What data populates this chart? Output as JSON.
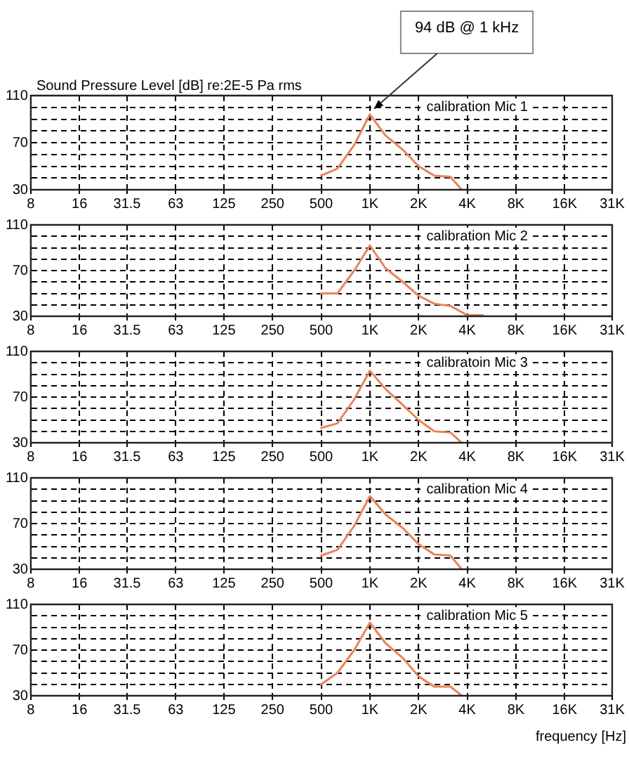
{
  "chart_data": [
    {
      "type": "line",
      "ylabel": "Sound Pressure Level [dB] re:2E-5 Pa rms",
      "log": "x",
      "grid": true,
      "marker": "none",
      "line_style": "solid",
      "x": [
        500,
        630,
        800,
        1000,
        1250,
        1600,
        2000,
        2500,
        3150,
        3700
      ],
      "series": [
        {
          "color": "#e8845a",
          "values": [
            42,
            48,
            68,
            94,
            76,
            64,
            50,
            42,
            41,
            30
          ]
        }
      ],
      "xlim": [
        8,
        31500
      ],
      "xticks": [
        8,
        16,
        31.5,
        63,
        125,
        250,
        500,
        {
          "value": 1000,
          "label": "1K"
        },
        {
          "value": 2000,
          "label": "2K"
        },
        {
          "value": 4000,
          "label": "4K"
        },
        {
          "value": 8000,
          "label": "8K"
        },
        {
          "value": 16000,
          "label": "16K"
        },
        {
          "value": 31500,
          "label": "31K"
        }
      ],
      "ylim": [
        30,
        110
      ],
      "yticks": [
        30,
        {
          "value": 40,
          "label": null
        },
        {
          "value": 50,
          "label": null
        },
        {
          "value": 60,
          "label": null
        },
        70,
        {
          "value": 80,
          "label": null
        },
        {
          "value": 90,
          "label": null
        },
        {
          "value": 100,
          "label": null
        },
        110
      ],
      "annotations": [
        "calibration Mic 1",
        {
          "text": "94 dB @ 1 kHz",
          "x": 1000,
          "y": 94
        }
      ]
    },
    {
      "type": "line",
      "log": "x",
      "grid": true,
      "marker": "none",
      "line_style": "solid",
      "x": [
        500,
        630,
        800,
        1000,
        1250,
        1600,
        2000,
        2500,
        3150,
        4000,
        5000
      ],
      "series": [
        {
          "color": "#e8845a",
          "values": [
            50,
            50,
            70,
            92,
            72,
            60,
            48,
            41,
            39,
            31,
            31
          ]
        }
      ],
      "xlim": [
        8,
        31500
      ],
      "xticks": [
        8,
        16,
        31.5,
        63,
        125,
        250,
        500,
        {
          "value": 1000,
          "label": "1K"
        },
        {
          "value": 2000,
          "label": "2K"
        },
        {
          "value": 4000,
          "label": "4K"
        },
        {
          "value": 8000,
          "label": "8K"
        },
        {
          "value": 16000,
          "label": "16K"
        },
        {
          "value": 31500,
          "label": "31K"
        }
      ],
      "ylim": [
        30,
        110
      ],
      "yticks": [
        30,
        {
          "value": 40,
          "label": null
        },
        {
          "value": 50,
          "label": null
        },
        {
          "value": 60,
          "label": null
        },
        70,
        {
          "value": 80,
          "label": null
        },
        {
          "value": 90,
          "label": null
        },
        {
          "value": 100,
          "label": null
        },
        110
      ],
      "annotations": [
        "calibration Mic 2"
      ]
    },
    {
      "type": "line",
      "log": "x",
      "grid": true,
      "marker": "none",
      "line_style": "solid",
      "x": [
        500,
        630,
        800,
        1000,
        1250,
        1600,
        2000,
        2500,
        3150,
        3700
      ],
      "series": [
        {
          "color": "#e8845a",
          "values": [
            43,
            47,
            68,
            93,
            77,
            63,
            50,
            40,
            39,
            30
          ]
        }
      ],
      "xlim": [
        8,
        31500
      ],
      "xticks": [
        8,
        16,
        31.5,
        63,
        125,
        250,
        500,
        {
          "value": 1000,
          "label": "1K"
        },
        {
          "value": 2000,
          "label": "2K"
        },
        {
          "value": 4000,
          "label": "4K"
        },
        {
          "value": 8000,
          "label": "8K"
        },
        {
          "value": 16000,
          "label": "16K"
        },
        {
          "value": 31500,
          "label": "31K"
        }
      ],
      "ylim": [
        30,
        110
      ],
      "yticks": [
        30,
        {
          "value": 40,
          "label": null
        },
        {
          "value": 50,
          "label": null
        },
        {
          "value": 60,
          "label": null
        },
        70,
        {
          "value": 80,
          "label": null
        },
        {
          "value": 90,
          "label": null
        },
        {
          "value": 100,
          "label": null
        },
        110
      ],
      "annotations": [
        "calibratoin Mic 3"
      ]
    },
    {
      "type": "line",
      "log": "x",
      "grid": true,
      "marker": "none",
      "line_style": "solid",
      "x": [
        500,
        630,
        800,
        1000,
        1250,
        1600,
        2000,
        2500,
        3150,
        3700
      ],
      "series": [
        {
          "color": "#e8845a",
          "values": [
            42,
            47,
            68,
            94,
            78,
            66,
            52,
            43,
            42,
            30
          ]
        }
      ],
      "xlim": [
        8,
        31500
      ],
      "xticks": [
        8,
        16,
        31.5,
        63,
        125,
        250,
        500,
        {
          "value": 1000,
          "label": "1K"
        },
        {
          "value": 2000,
          "label": "2K"
        },
        {
          "value": 4000,
          "label": "4K"
        },
        {
          "value": 8000,
          "label": "8K"
        },
        {
          "value": 16000,
          "label": "16K"
        },
        {
          "value": 31500,
          "label": "31K"
        }
      ],
      "ylim": [
        30,
        110
      ],
      "yticks": [
        30,
        {
          "value": 40,
          "label": null
        },
        {
          "value": 50,
          "label": null
        },
        {
          "value": 60,
          "label": null
        },
        70,
        {
          "value": 80,
          "label": null
        },
        {
          "value": 90,
          "label": null
        },
        {
          "value": 100,
          "label": null
        },
        110
      ],
      "annotations": [
        "calibration Mic 4"
      ]
    },
    {
      "type": "line",
      "xlabel": "frequency [Hz]",
      "log": "x",
      "grid": true,
      "marker": "none",
      "line_style": "solid",
      "x": [
        500,
        630,
        800,
        1000,
        1250,
        1600,
        2000,
        2500,
        3150,
        3700
      ],
      "series": [
        {
          "color": "#e8845a",
          "values": [
            40,
            50,
            70,
            94,
            76,
            63,
            47,
            38,
            38,
            30
          ]
        }
      ],
      "xlim": [
        8,
        31500
      ],
      "xticks": [
        8,
        16,
        31.5,
        63,
        125,
        250,
        500,
        {
          "value": 1000,
          "label": "1K"
        },
        {
          "value": 2000,
          "label": "2K"
        },
        {
          "value": 4000,
          "label": "4K"
        },
        {
          "value": 8000,
          "label": "8K"
        },
        {
          "value": 16000,
          "label": "16K"
        },
        {
          "value": 31500,
          "label": "31K"
        }
      ],
      "ylim": [
        30,
        110
      ],
      "yticks": [
        30,
        {
          "value": 40,
          "label": null
        },
        {
          "value": 50,
          "label": null
        },
        {
          "value": 60,
          "label": null
        },
        70,
        {
          "value": 80,
          "label": null
        },
        {
          "value": 90,
          "label": null
        },
        {
          "value": 100,
          "label": null
        },
        110
      ],
      "annotations": [
        "calibration Mic 5"
      ]
    }
  ]
}
